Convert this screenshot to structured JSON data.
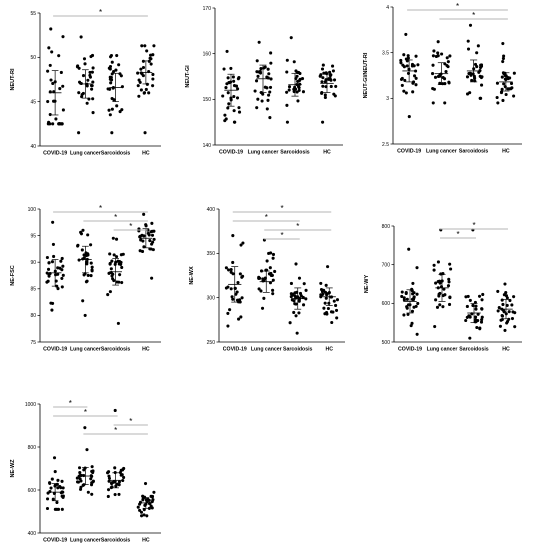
{
  "chart_data": [
    {
      "type": "scatter",
      "ylabel": "NEUT-RI",
      "categories": [
        "COVID-19",
        "Lung cancer",
        "Sarcoidosis",
        "HC"
      ],
      "ylim": [
        40,
        55
      ],
      "yticks": [
        40,
        45,
        50,
        55
      ],
      "grid": false,
      "significance": [
        {
          "from": 0,
          "to": 3,
          "label": "*"
        }
      ],
      "series": [
        {
          "category": "COVID-19",
          "center": 46.0,
          "spread": 2.5,
          "range": [
            42.5,
            53.2
          ]
        },
        {
          "category": "Lung cancer",
          "center": 47.0,
          "spread": 1.6,
          "range": [
            41.5,
            52.3
          ]
        },
        {
          "category": "Sarcoidosis",
          "center": 46.6,
          "spread": 1.6,
          "range": [
            41.5,
            50.2
          ]
        },
        {
          "category": "HC",
          "center": 48.3,
          "spread": 1.3,
          "range": [
            41.5,
            51.3
          ]
        }
      ]
    },
    {
      "type": "scatter",
      "ylabel": "NEUT-GI",
      "categories": [
        "COVID-19",
        "Lung cancer",
        "Sarcoidosis",
        "HC"
      ],
      "ylim": [
        140,
        170
      ],
      "yticks": [
        140,
        150,
        160,
        170
      ],
      "grid": false,
      "significance": [],
      "series": [
        {
          "category": "COVID-19",
          "center": 152.0,
          "spread": 3.5,
          "range": [
            145.0,
            160.5
          ]
        },
        {
          "category": "Lung cancer",
          "center": 154.5,
          "spread": 3.0,
          "range": [
            146.0,
            162.5
          ]
        },
        {
          "category": "Sarcoidosis",
          "center": 153.2,
          "spread": 2.5,
          "range": [
            145.0,
            163.5
          ]
        },
        {
          "category": "HC",
          "center": 153.5,
          "spread": 2.0,
          "range": [
            145.0,
            157.5
          ]
        }
      ]
    },
    {
      "type": "scatter",
      "ylabel": "NEUT-GI/NEUT-RI",
      "categories": [
        "COVID-19",
        "Lung cancer",
        "Sarcoidosis",
        "HC"
      ],
      "ylim": [
        2.5,
        4.0
      ],
      "yticks": [
        2.5,
        3.0,
        3.5,
        4.0
      ],
      "grid": false,
      "significance": [
        {
          "from": 0,
          "to": 3,
          "label": "*"
        },
        {
          "from": 1,
          "to": 3,
          "label": "*"
        }
      ],
      "series": [
        {
          "category": "COVID-19",
          "center": 3.3,
          "spread": 0.12,
          "range": [
            2.8,
            3.7
          ]
        },
        {
          "category": "Lung cancer",
          "center": 3.27,
          "spread": 0.12,
          "range": [
            2.95,
            3.62
          ]
        },
        {
          "category": "Sarcoidosis",
          "center": 3.3,
          "spread": 0.12,
          "range": [
            3.0,
            3.8
          ]
        },
        {
          "category": "HC",
          "center": 3.18,
          "spread": 0.1,
          "range": [
            2.95,
            3.6
          ]
        }
      ]
    },
    {
      "type": "scatter",
      "ylabel": "NE-FSC",
      "categories": [
        "COVID-19",
        "Lung cancer",
        "Sarcoidosis",
        "HC"
      ],
      "ylim": [
        75,
        100
      ],
      "yticks": [
        75,
        80,
        85,
        90,
        95,
        100
      ],
      "grid": false,
      "significance": [
        {
          "from": 0,
          "to": 3,
          "label": "*"
        },
        {
          "from": 1,
          "to": 3,
          "label": "*"
        },
        {
          "from": 2,
          "to": 3,
          "label": "*"
        }
      ],
      "series": [
        {
          "category": "COVID-19",
          "center": 88.0,
          "spread": 2.5,
          "range": [
            81.0,
            97.5
          ]
        },
        {
          "category": "Lung cancer",
          "center": 90.5,
          "spread": 2.5,
          "range": [
            80.0,
            96.0
          ]
        },
        {
          "category": "Sarcoidosis",
          "center": 88.2,
          "spread": 2.5,
          "range": [
            78.5,
            94.5
          ]
        },
        {
          "category": "HC",
          "center": 94.5,
          "spread": 1.8,
          "range": [
            87.0,
            99.0
          ]
        }
      ]
    },
    {
      "type": "scatter",
      "ylabel": "NE-WX",
      "categories": [
        "COVID-19",
        "Lung cancer",
        "Sarcoidosis",
        "HC"
      ],
      "ylim": [
        250,
        400
      ],
      "yticks": [
        250,
        300,
        350,
        400
      ],
      "grid": false,
      "significance": [
        {
          "from": 0,
          "to": 3,
          "label": "*"
        },
        {
          "from": 0,
          "to": 2,
          "label": "*"
        },
        {
          "from": 1,
          "to": 3,
          "label": "*"
        },
        {
          "from": 1,
          "to": 2,
          "label": "*"
        }
      ],
      "series": [
        {
          "category": "COVID-19",
          "center": 315.0,
          "spread": 20.0,
          "range": [
            268.0,
            370.0
          ]
        },
        {
          "category": "Lung cancer",
          "center": 318.0,
          "spread": 12.0,
          "range": [
            288.0,
            365.0
          ]
        },
        {
          "category": "Sarcoidosis",
          "center": 299.0,
          "spread": 12.0,
          "range": [
            260.0,
            338.0
          ]
        },
        {
          "category": "HC",
          "center": 301.0,
          "spread": 10.0,
          "range": [
            272.0,
            335.0
          ]
        }
      ]
    },
    {
      "type": "scatter",
      "ylabel": "NE-WY",
      "categories": [
        "COVID-19",
        "Lung cancer",
        "Sarcoidosis",
        "HC"
      ],
      "ylim": [
        500,
        800
      ],
      "yticks": [
        500,
        600,
        700,
        800
      ],
      "grid": false,
      "significance": [
        {
          "from": 1,
          "to": 3,
          "label": "*"
        },
        {
          "from": 1,
          "to": 2,
          "label": "*"
        }
      ],
      "series": [
        {
          "category": "COVID-19",
          "center": 605.0,
          "spread": 30.0,
          "range": [
            520.0,
            740.0
          ]
        },
        {
          "category": "Lung cancer",
          "center": 640.0,
          "spread": 35.0,
          "range": [
            540.0,
            790.0
          ]
        },
        {
          "category": "Sarcoidosis",
          "center": 575.0,
          "spread": 25.0,
          "range": [
            510.0,
            790.0
          ]
        },
        {
          "category": "HC",
          "center": 585.0,
          "spread": 25.0,
          "range": [
            530.0,
            650.0
          ]
        }
      ]
    },
    {
      "type": "scatter",
      "ylabel": "NE-WZ",
      "categories": [
        "COVID-19",
        "Lung cancer",
        "Sarcoidosis",
        "HC"
      ],
      "ylim": [
        400,
        1000
      ],
      "yticks": [
        400,
        600,
        800,
        1000
      ],
      "grid": false,
      "significance": [
        {
          "from": 0,
          "to": 1,
          "label": "*"
        },
        {
          "from": 0,
          "to": 2,
          "label": "*"
        },
        {
          "from": 2,
          "to": 3,
          "label": "*"
        },
        {
          "from": 1,
          "to": 3,
          "label": "*"
        }
      ],
      "series": [
        {
          "category": "COVID-19",
          "center": 590.0,
          "spread": 40.0,
          "range": [
            510.0,
            750.0
          ]
        },
        {
          "category": "Lung cancer",
          "center": 665.0,
          "spread": 40.0,
          "range": [
            580.0,
            890.0
          ]
        },
        {
          "category": "Sarcoidosis",
          "center": 645.0,
          "spread": 35.0,
          "range": [
            570.0,
            970.0
          ]
        },
        {
          "category": "HC",
          "center": 540.0,
          "spread": 25.0,
          "range": [
            480.0,
            630.0
          ]
        }
      ]
    }
  ]
}
